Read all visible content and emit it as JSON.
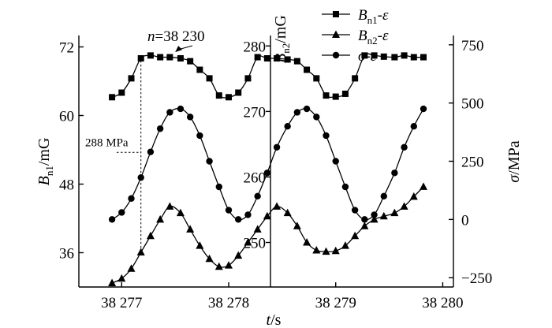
{
  "chart_data": {
    "type": "line",
    "xlabel": "t/s",
    "ylabel_left": "Bn1/mG",
    "ylabel_left_main": "B",
    "ylabel_left_sub": "n1",
    "ylabel_left_unit": "/mG",
    "ylabel_mid_main": "B",
    "ylabel_mid_sub": "n2",
    "ylabel_mid_unit": "/mG",
    "ylabel_right_main": "σ",
    "ylabel_right_unit": "/MPa",
    "x_ticks": [
      38277,
      38278,
      38279,
      38280
    ],
    "x_tick_labels": [
      "38 277",
      "38 278",
      "38 279",
      "38 280"
    ],
    "xlim": [
      38276.6,
      38280.1
    ],
    "left_axis": {
      "ylim": [
        30,
        74
      ],
      "ticks": [
        36,
        48,
        60,
        72
      ],
      "tick_labels": [
        "36",
        "48",
        "60",
        "72"
      ]
    },
    "mid_axis": {
      "ylim": [
        243.2,
        281.6
      ],
      "ticks": [
        250,
        260,
        270,
        280
      ],
      "tick_labels": [
        "250",
        "260",
        "270",
        "280"
      ]
    },
    "right_axis": {
      "ylim": [
        -290,
        790
      ],
      "ticks": [
        -250,
        0,
        250,
        500,
        750
      ],
      "tick_labels": [
        "−250",
        "0",
        "250",
        "500",
        "750"
      ]
    },
    "legend_entries": [
      {
        "marker": "square",
        "main": "B",
        "sub": "n1",
        "tail": "-ε"
      },
      {
        "marker": "triangle",
        "main": "B",
        "sub": "n2",
        "tail": "-ε"
      },
      {
        "marker": "circle",
        "main": "σ",
        "sub": "",
        "tail": "-ε"
      }
    ],
    "series": [
      {
        "name": "Bn1-ε",
        "axis": "left",
        "marker": "square",
        "x": [
          38276.91,
          38277.0,
          38277.09,
          38277.18,
          38277.27,
          38277.36,
          38277.45,
          38277.55,
          38277.64,
          38277.73,
          38277.82,
          38277.91,
          38278.0,
          38278.09,
          38278.18,
          38278.27,
          38278.36,
          38278.45,
          38278.55,
          38278.64,
          38278.73,
          38278.82,
          38278.91,
          38279.0,
          38279.09,
          38279.18,
          38279.27,
          38279.36,
          38279.45,
          38279.55,
          38279.64,
          38279.73,
          38279.82
        ],
        "y": [
          63.2,
          64.0,
          66.5,
          70.0,
          70.5,
          70.2,
          70.2,
          70.0,
          69.5,
          68.0,
          66.5,
          63.5,
          63.2,
          64.0,
          66.5,
          70.2,
          70.0,
          70.0,
          69.8,
          69.5,
          68.0,
          66.5,
          63.5,
          63.3,
          63.8,
          66.5,
          70.5,
          70.5,
          70.3,
          70.2,
          70.5,
          70.2,
          70.2
        ]
      },
      {
        "name": "Bn2-ε",
        "axis": "mid",
        "marker": "triangle",
        "x": [
          38276.91,
          38277.0,
          38277.09,
          38277.18,
          38277.27,
          38277.36,
          38277.45,
          38277.55,
          38277.64,
          38277.73,
          38277.82,
          38277.91,
          38278.0,
          38278.09,
          38278.18,
          38278.27,
          38278.36,
          38278.45,
          38278.55,
          38278.64,
          38278.73,
          38278.82,
          38278.91,
          38279.0,
          38279.09,
          38279.18,
          38279.27,
          38279.36,
          38279.45,
          38279.55,
          38279.64,
          38279.73,
          38279.82
        ],
        "y": [
          243.8,
          244.5,
          246.0,
          248.5,
          251.0,
          253.5,
          255.5,
          254.5,
          252.0,
          249.5,
          247.5,
          246.3,
          246.5,
          248.0,
          250.0,
          252.0,
          254.0,
          255.5,
          254.5,
          252.5,
          250.0,
          248.8,
          248.6,
          248.7,
          249.5,
          251.0,
          252.5,
          253.5,
          254.0,
          254.5,
          255.5,
          257.0,
          258.5
        ]
      },
      {
        "name": "σ-ε",
        "axis": "right",
        "marker": "circle",
        "x": [
          38276.91,
          38277.0,
          38277.09,
          38277.18,
          38277.27,
          38277.36,
          38277.45,
          38277.55,
          38277.64,
          38277.73,
          38277.82,
          38277.91,
          38278.0,
          38278.09,
          38278.18,
          38278.27,
          38278.36,
          38278.45,
          38278.55,
          38278.64,
          38278.73,
          38278.82,
          38278.91,
          38279.0,
          38279.09,
          38279.18,
          38279.27,
          38279.36,
          38279.45,
          38279.55,
          38279.64,
          38279.73,
          38279.82
        ],
        "y": [
          0,
          30,
          90,
          180,
          290,
          390,
          460,
          475,
          440,
          360,
          250,
          140,
          40,
          0,
          20,
          100,
          200,
          310,
          400,
          460,
          475,
          440,
          360,
          250,
          140,
          40,
          0,
          20,
          100,
          200,
          310,
          400,
          475
        ]
      }
    ],
    "annotations": [
      {
        "text": "n=38 230",
        "x": 38277.5,
        "y_left": 70.4
      },
      {
        "text": "288 MPa",
        "x": 38277.18,
        "y_right": 288
      }
    ],
    "grid": false,
    "legend_position": "top-right"
  }
}
